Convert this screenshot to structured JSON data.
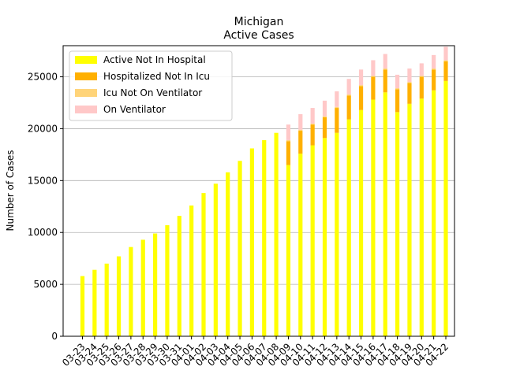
{
  "chart_data": {
    "type": "bar",
    "stacked": true,
    "title": "Michigan",
    "subtitle": "Active Cases",
    "xlabel": "",
    "ylabel": "Number of Cases",
    "ylim": [
      0,
      28000
    ],
    "yticks": [
      0,
      5000,
      10000,
      15000,
      20000,
      25000
    ],
    "grid": "y",
    "legend_position": "top-left",
    "categories": [
      "03-23",
      "03-24",
      "03-25",
      "03-26",
      "03-27",
      "03-28",
      "03-29",
      "03-30",
      "03-31",
      "04-01",
      "04-02",
      "04-03",
      "04-04",
      "04-05",
      "04-06",
      "04-07",
      "04-08",
      "04-09",
      "04-10",
      "04-11",
      "04-12",
      "04-13",
      "04-14",
      "04-15",
      "04-16",
      "04-17",
      "04-18",
      "04-19",
      "04-20",
      "04-21",
      "04-22"
    ],
    "series": [
      {
        "name": "Active Not In Hospital",
        "color": "#ffff00",
        "values": [
          5800,
          6400,
          7000,
          7700,
          8600,
          9300,
          9900,
          10700,
          11600,
          12600,
          13800,
          14700,
          15800,
          16900,
          18100,
          18900,
          19600,
          16500,
          17600,
          18400,
          19100,
          19600,
          20900,
          21800,
          22800,
          23500,
          21600,
          22400,
          22900,
          23700,
          24600
        ]
      },
      {
        "name": "Hospitalized Not In Icu",
        "color": "#ffb000",
        "values": [
          0,
          0,
          0,
          0,
          0,
          0,
          0,
          0,
          0,
          0,
          0,
          0,
          0,
          0,
          0,
          0,
          0,
          2300,
          2200,
          2000,
          2000,
          2400,
          2300,
          2300,
          2200,
          2200,
          2200,
          2000,
          2100,
          2000,
          1900
        ]
      },
      {
        "name": "Icu Not On Ventilator",
        "color": "#ffd479",
        "values": [
          0,
          0,
          0,
          0,
          0,
          0,
          0,
          0,
          0,
          0,
          0,
          0,
          0,
          0,
          0,
          0,
          0,
          100,
          100,
          100,
          100,
          100,
          100,
          100,
          100,
          100,
          100,
          100,
          100,
          100,
          100
        ]
      },
      {
        "name": "On Ventilator",
        "color": "#ffc8c8",
        "values": [
          0,
          0,
          0,
          0,
          0,
          0,
          0,
          0,
          0,
          0,
          0,
          0,
          0,
          0,
          0,
          0,
          0,
          1500,
          1500,
          1500,
          1500,
          1500,
          1500,
          1500,
          1500,
          1400,
          1300,
          1300,
          1200,
          1300,
          1300
        ]
      }
    ]
  }
}
